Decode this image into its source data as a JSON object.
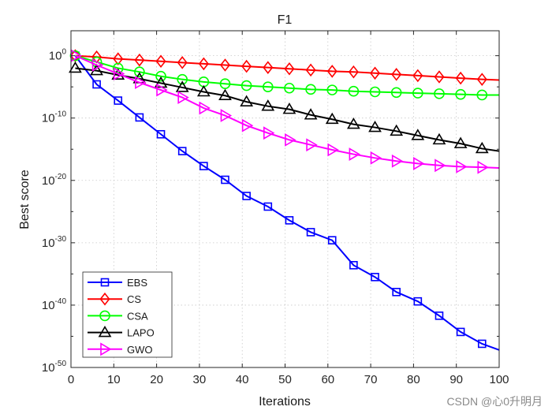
{
  "chart_data": {
    "type": "line",
    "title": "F1",
    "xlabel": "Iterations",
    "ylabel": "Best score",
    "y_scale": "log",
    "xlim": [
      0,
      100
    ],
    "ylim_exponent": [
      -50,
      4
    ],
    "x_ticks": [
      0,
      10,
      20,
      30,
      40,
      50,
      60,
      70,
      80,
      90,
      100
    ],
    "y_ticks": [
      {
        "base": "10",
        "exp": "0",
        "value": 0
      },
      {
        "base": "10",
        "exp": "-10",
        "value": -10
      },
      {
        "base": "10",
        "exp": "-20",
        "value": -20
      },
      {
        "base": "10",
        "exp": "-30",
        "value": -30
      },
      {
        "base": "10",
        "exp": "-40",
        "value": -40
      },
      {
        "base": "10",
        "exp": "-50",
        "value": -50
      }
    ],
    "grid": "dotted",
    "legend_position": "bottom-left",
    "x": [
      1,
      6,
      11,
      16,
      21,
      26,
      31,
      36,
      41,
      46,
      51,
      56,
      61,
      66,
      71,
      76,
      81,
      86,
      91,
      96
    ],
    "series": [
      {
        "name": "EBS",
        "color": "#0000ff",
        "marker": "square",
        "log10_values": [
          0,
          -4.6,
          -7.2,
          -9.9,
          -12.6,
          -15.3,
          -17.7,
          -19.9,
          -22.5,
          -24.2,
          -26.4,
          -28.3,
          -29.6,
          -33.6,
          -35.5,
          -37.9,
          -39.4,
          -41.7,
          -44.3,
          -46.2
        ],
        "end_log10": -47.2
      },
      {
        "name": "CS",
        "color": "#ff0000",
        "marker": "diamond",
        "log10_values": [
          0,
          -0.2,
          -0.5,
          -0.7,
          -0.9,
          -1.1,
          -1.3,
          -1.5,
          -1.7,
          -1.9,
          -2.1,
          -2.3,
          -2.5,
          -2.6,
          -2.8,
          -3.0,
          -3.2,
          -3.4,
          -3.6,
          -3.8
        ],
        "end_log10": -3.9
      },
      {
        "name": "CSA",
        "color": "#00ff00",
        "marker": "circle",
        "log10_values": [
          0,
          -1.0,
          -2.0,
          -2.6,
          -3.3,
          -3.8,
          -4.2,
          -4.5,
          -4.8,
          -5.0,
          -5.2,
          -5.4,
          -5.5,
          -5.7,
          -5.8,
          -5.9,
          -6.0,
          -6.1,
          -6.2,
          -6.3
        ],
        "end_log10": -6.3
      },
      {
        "name": "LAPO",
        "color": "#000000",
        "marker": "triangle-up",
        "log10_values": [
          -2.0,
          -2.4,
          -3.1,
          -3.7,
          -4.4,
          -5.1,
          -5.8,
          -6.4,
          -7.4,
          -8.1,
          -8.6,
          -9.5,
          -10.2,
          -11.0,
          -11.5,
          -12.1,
          -12.8,
          -13.5,
          -14.1,
          -14.9
        ],
        "end_log10": -15.3
      },
      {
        "name": "GWO",
        "color": "#ff00ff",
        "marker": "triangle-right",
        "log10_values": [
          0,
          -1.5,
          -2.9,
          -4.3,
          -5.5,
          -6.7,
          -8.4,
          -9.6,
          -11.2,
          -12.4,
          -13.5,
          -14.3,
          -15.1,
          -15.8,
          -16.4,
          -16.9,
          -17.3,
          -17.6,
          -17.8,
          -17.9
        ],
        "end_log10": -18.0
      }
    ]
  },
  "watermark": "CSDN @心0升明月"
}
